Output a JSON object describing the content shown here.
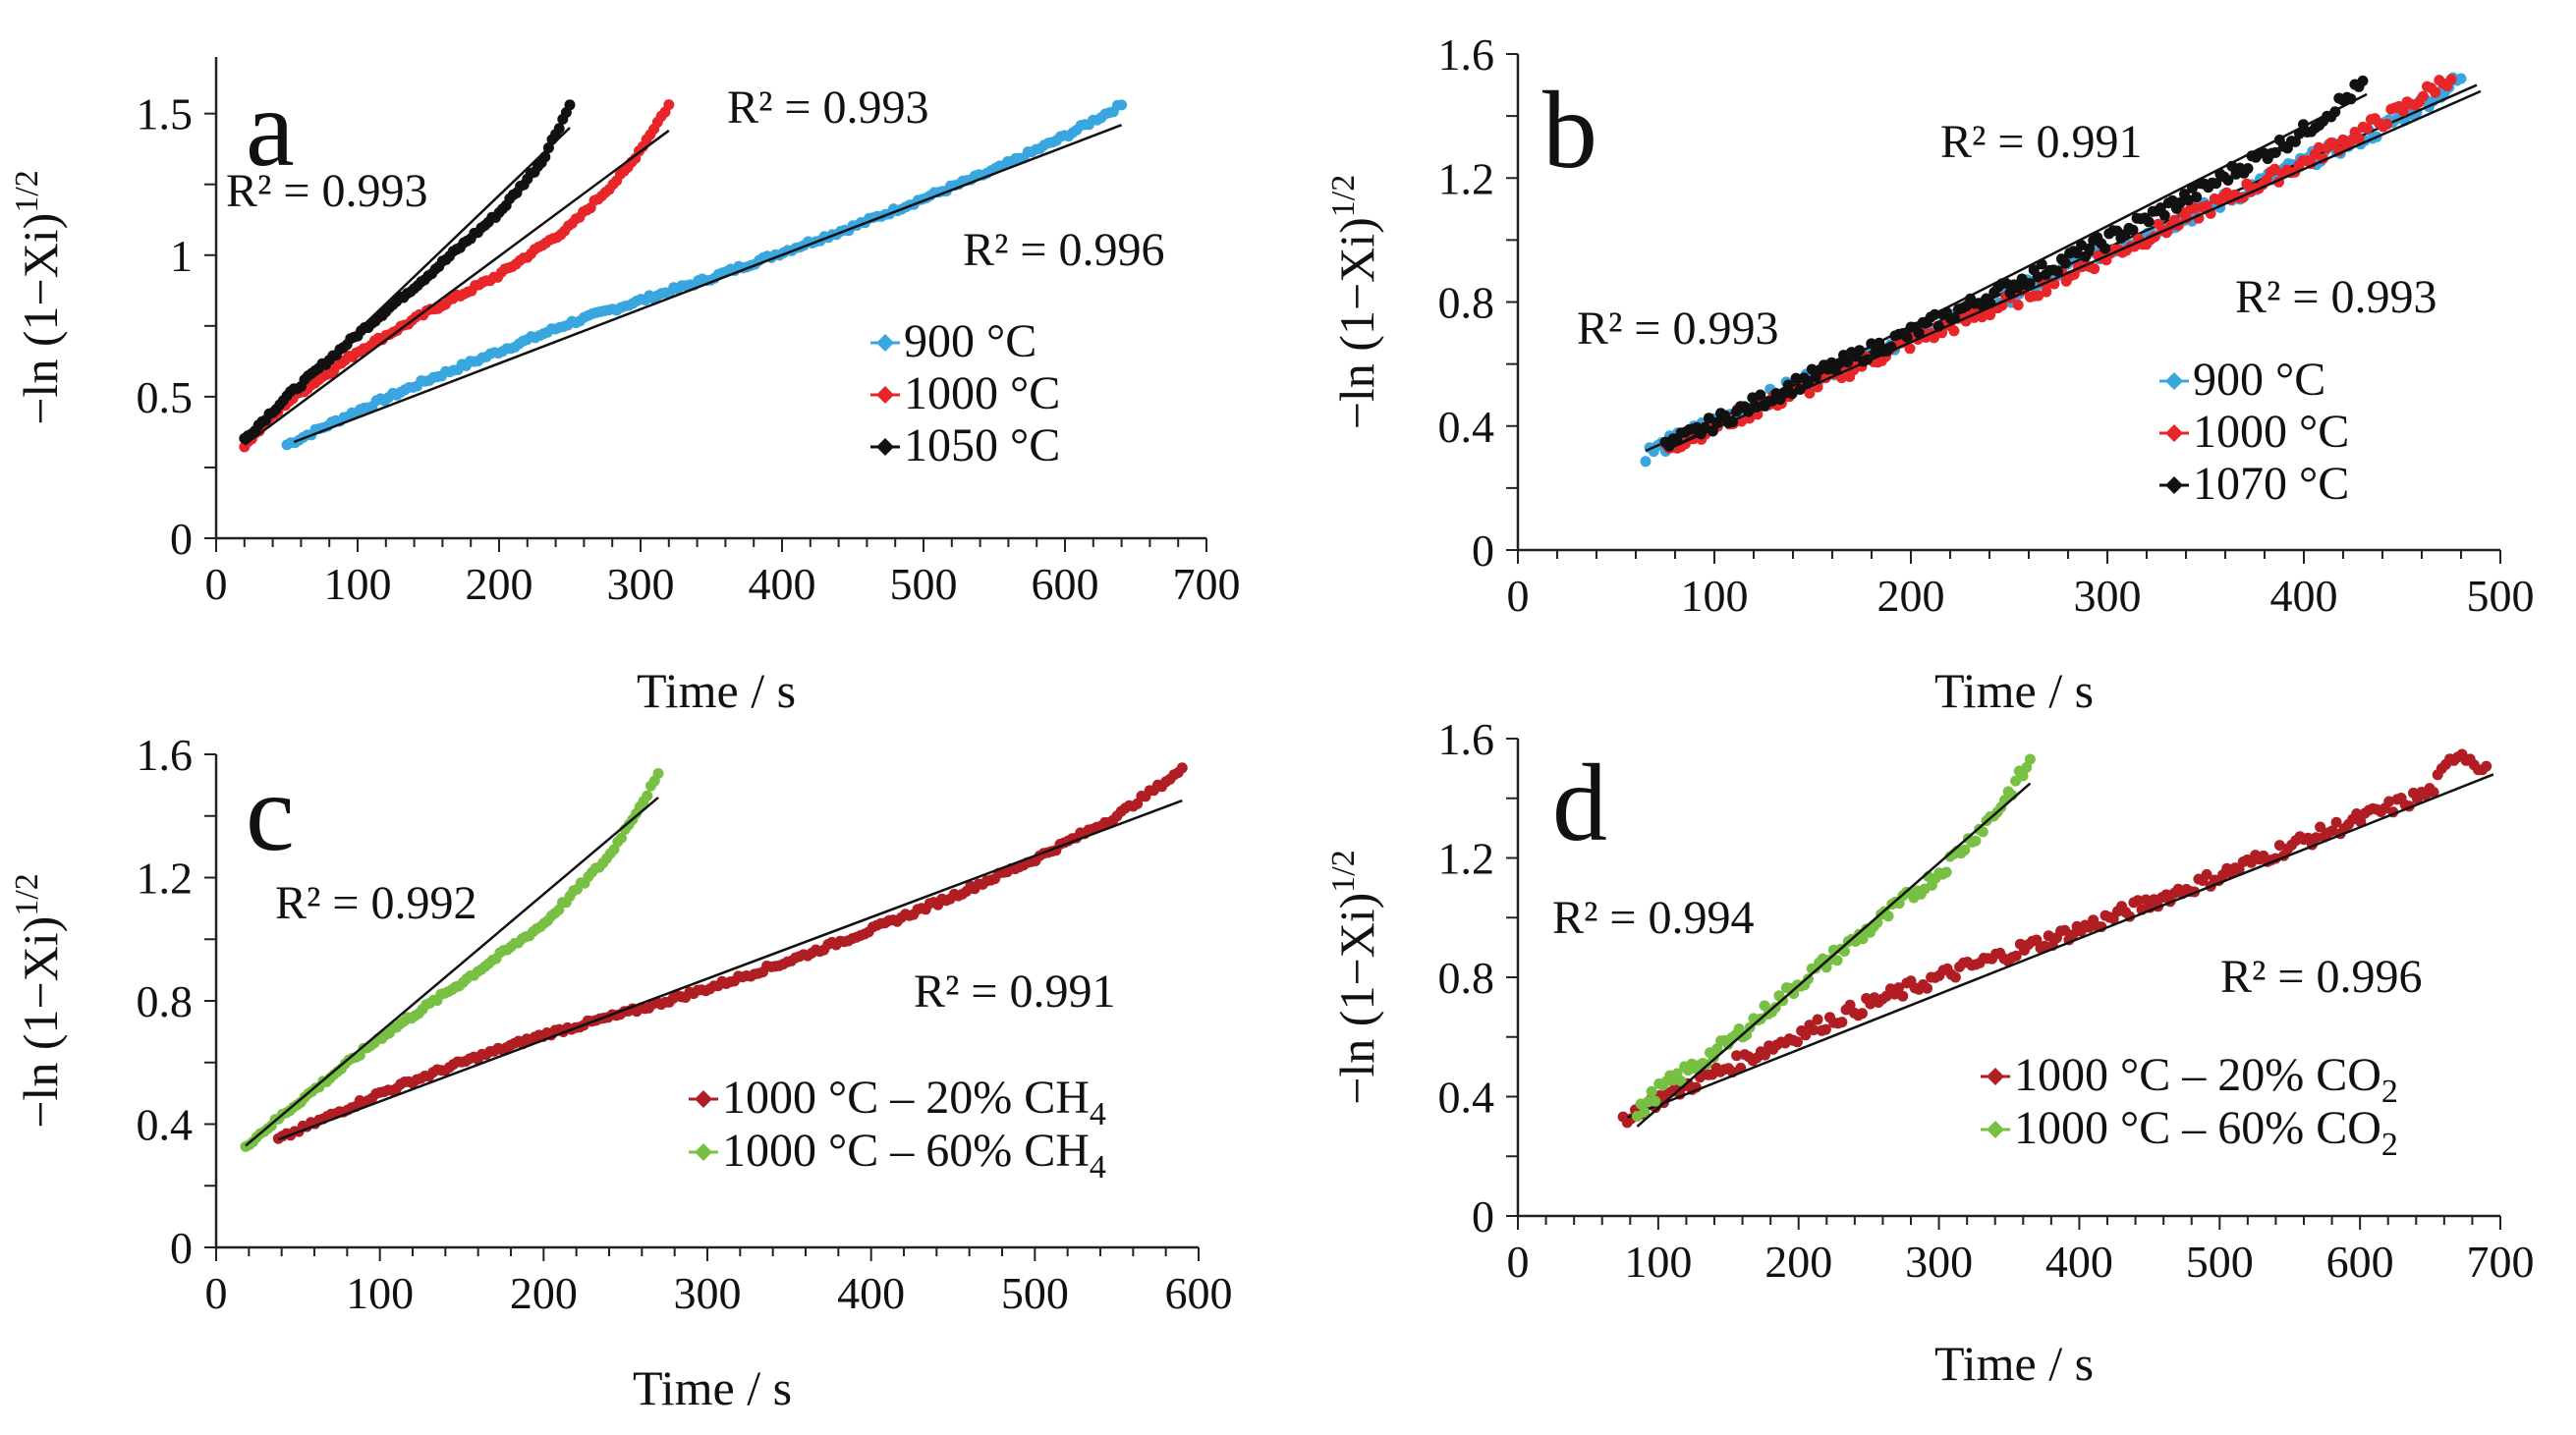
{
  "figure": {
    "y_axis_label": "−ln (1−Xi)",
    "y_axis_superscript": "1/2",
    "x_axis_label": "Time / s"
  },
  "chart_data": [
    {
      "panel": "a",
      "type": "scatter",
      "xlabel": "Time / s",
      "ylabel": "−ln (1−Xi)^1/2",
      "xlim": [
        0,
        700
      ],
      "ylim": [
        0,
        1.7
      ],
      "xticks": [
        0,
        100,
        200,
        300,
        400,
        500,
        600,
        700
      ],
      "xtick_labels": [
        "0",
        "100",
        "200",
        "300",
        "400",
        "500",
        "600",
        "700"
      ],
      "yticks": [
        0,
        0.5,
        1,
        1.5
      ],
      "ytick_labels": [
        "0",
        "0.5",
        "1",
        "1.5"
      ],
      "series": [
        {
          "name": "900 °C",
          "color": "#3aa6e0",
          "legend_label": "900 °C",
          "points": [
            [
              50,
              0.33
            ],
            [
              100,
              0.45
            ],
            [
              150,
              0.56
            ],
            [
              200,
              0.66
            ],
            [
              250,
              0.76
            ],
            [
              300,
              0.84
            ],
            [
              350,
              0.92
            ],
            [
              400,
              1.01
            ],
            [
              450,
              1.1
            ],
            [
              500,
              1.2
            ],
            [
              550,
              1.3
            ],
            [
              600,
              1.42
            ],
            [
              640,
              1.53
            ]
          ],
          "fit": [
            [
              55,
              0.34
            ],
            [
              640,
              1.46
            ]
          ],
          "r2": "R² = 0.996"
        },
        {
          "name": "1000 °C",
          "color": "#e8262a",
          "legend_label": "1000 °C",
          "points": [
            [
              20,
              0.33
            ],
            [
              50,
              0.48
            ],
            [
              100,
              0.66
            ],
            [
              150,
              0.8
            ],
            [
              200,
              0.93
            ],
            [
              250,
              1.1
            ],
            [
              290,
              1.3
            ],
            [
              320,
              1.53
            ]
          ],
          "fit": [
            [
              20,
              0.33
            ],
            [
              320,
              1.44
            ]
          ],
          "r2": "R² = 0.993"
        },
        {
          "name": "1050 °C",
          "color": "#111111",
          "legend_label": "1050 °C",
          "points": [
            [
              20,
              0.35
            ],
            [
              50,
              0.5
            ],
            [
              100,
              0.72
            ],
            [
              150,
              0.93
            ],
            [
              200,
              1.15
            ],
            [
              230,
              1.33
            ],
            [
              250,
              1.53
            ]
          ],
          "fit": [
            [
              20,
              0.35
            ],
            [
              250,
              1.45
            ]
          ],
          "r2": "R² = 0.993"
        }
      ]
    },
    {
      "panel": "b",
      "type": "scatter",
      "xlabel": "Time / s",
      "ylabel": "−ln (1−Xi)^1/2",
      "xlim": [
        0,
        500
      ],
      "ylim": [
        0,
        1.6
      ],
      "xticks": [
        0,
        100,
        200,
        300,
        400,
        500
      ],
      "xtick_labels": [
        "0",
        "100",
        "200",
        "300",
        "400",
        "500"
      ],
      "yticks": [
        0,
        0.4,
        0.8,
        1.2,
        1.6
      ],
      "ytick_labels": [
        "0",
        "0.4",
        "0.8",
        "1.2",
        "1.6"
      ],
      "series": [
        {
          "name": "900 °C",
          "color": "#3aa6e0",
          "legend_label": "900 °C",
          "points": [
            [
              65,
              0.31
            ],
            [
              100,
              0.41
            ],
            [
              150,
              0.56
            ],
            [
              200,
              0.69
            ],
            [
              250,
              0.82
            ],
            [
              300,
              0.97
            ],
            [
              350,
              1.1
            ],
            [
              400,
              1.25
            ],
            [
              440,
              1.36
            ],
            [
              480,
              1.52
            ]
          ],
          "fit": [
            [
              65,
              0.32
            ],
            [
              488,
              1.5
            ]
          ],
          "r2": "R² = 0.993"
        },
        {
          "name": "1000 °C",
          "color": "#e8262a",
          "legend_label": "1000 °C",
          "points": [
            [
              75,
              0.33
            ],
            [
              100,
              0.4
            ],
            [
              150,
              0.53
            ],
            [
              200,
              0.67
            ],
            [
              250,
              0.8
            ],
            [
              300,
              0.95
            ],
            [
              350,
              1.1
            ],
            [
              400,
              1.25
            ],
            [
              450,
              1.42
            ],
            [
              475,
              1.53
            ]
          ],
          "fit": [
            [
              78,
              0.33
            ],
            [
              490,
              1.48
            ]
          ],
          "r2": "R² = 0.993"
        },
        {
          "name": "1070 °C",
          "color": "#111111",
          "legend_label": "1070 °C",
          "points": [
            [
              75,
              0.33
            ],
            [
              100,
              0.41
            ],
            [
              150,
              0.56
            ],
            [
              200,
              0.7
            ],
            [
              250,
              0.85
            ],
            [
              300,
              1.0
            ],
            [
              350,
              1.17
            ],
            [
              400,
              1.35
            ],
            [
              430,
              1.5
            ]
          ],
          "fit": [
            [
              78,
              0.33
            ],
            [
              432,
              1.47
            ]
          ],
          "r2": "R² = 0.991"
        }
      ]
    },
    {
      "panel": "c",
      "type": "scatter",
      "xlabel": "Time / s",
      "ylabel": "−ln (1−Xi)^1/2",
      "xlim": [
        0,
        600
      ],
      "ylim": [
        0,
        1.6
      ],
      "xticks": [
        0,
        100,
        200,
        300,
        400,
        500,
        600
      ],
      "xtick_labels": [
        "0",
        "100",
        "200",
        "300",
        "400",
        "500",
        "600"
      ],
      "yticks": [
        0,
        0.4,
        0.8,
        1.2,
        1.6
      ],
      "ytick_labels": [
        "0",
        "0.4",
        "0.8",
        "1.2",
        "1.6"
      ],
      "series": [
        {
          "name": "1000 °C – 20% CH4",
          "color": "#b01e24",
          "legend_label": "1000 °C – 20% CH",
          "legend_sub": "4",
          "points": [
            [
              38,
              0.35
            ],
            [
              100,
              0.5
            ],
            [
              150,
              0.6
            ],
            [
              200,
              0.69
            ],
            [
              250,
              0.76
            ],
            [
              300,
              0.84
            ],
            [
              350,
              0.93
            ],
            [
              400,
              1.03
            ],
            [
              450,
              1.14
            ],
            [
              500,
              1.26
            ],
            [
              550,
              1.4
            ],
            [
              590,
              1.55
            ]
          ],
          "fit": [
            [
              38,
              0.35
            ],
            [
              590,
              1.45
            ]
          ],
          "r2": "R² = 0.991"
        },
        {
          "name": "1000 °C – 60% CH4",
          "color": "#78c043",
          "legend_label": "1000 °C – 60% CH",
          "legend_sub": "4",
          "points": [
            [
              18,
              0.33
            ],
            [
              50,
              0.47
            ],
            [
              100,
              0.68
            ],
            [
              150,
              0.86
            ],
            [
              200,
              1.05
            ],
            [
              240,
              1.27
            ],
            [
              270,
              1.53
            ]
          ],
          "fit": [
            [
              18,
              0.33
            ],
            [
              270,
              1.46
            ]
          ],
          "r2": "R² = 0.992"
        }
      ]
    },
    {
      "panel": "d",
      "type": "scatter",
      "xlabel": "Time / s",
      "ylabel": "−ln (1−Xi)^1/2",
      "xlim": [
        0,
        700
      ],
      "ylim": [
        0,
        1.6
      ],
      "xticks": [
        0,
        100,
        200,
        300,
        400,
        500,
        600,
        700
      ],
      "xtick_labels": [
        "0",
        "100",
        "200",
        "300",
        "400",
        "500",
        "600",
        "700"
      ],
      "yticks": [
        0,
        0.4,
        0.8,
        1.2,
        1.6
      ],
      "ytick_labels": [
        "0",
        "0.4",
        "0.8",
        "1.2",
        "1.6"
      ],
      "series": [
        {
          "name": "1000 °C – 20% CO2",
          "color": "#b01e24",
          "legend_label": "1000 °C – 20% CO",
          "legend_sub": "2",
          "points": [
            [
              75,
              0.33
            ],
            [
              100,
              0.39
            ],
            [
              150,
              0.5
            ],
            [
              200,
              0.61
            ],
            [
              250,
              0.71
            ],
            [
              300,
              0.8
            ],
            [
              350,
              0.88
            ],
            [
              400,
              0.96
            ],
            [
              450,
              1.05
            ],
            [
              500,
              1.14
            ],
            [
              550,
              1.24
            ],
            [
              600,
              1.33
            ],
            [
              650,
              1.42
            ],
            [
              670,
              1.56
            ],
            [
              690,
              1.5
            ]
          ],
          "fit": [
            [
              78,
              0.33
            ],
            [
              695,
              1.48
            ]
          ],
          "r2": "R² = 0.996"
        },
        {
          "name": "1000 °C – 60% CO2",
          "color": "#78c043",
          "legend_label": "1000 °C – 60% CO",
          "legend_sub": "2",
          "points": [
            [
              85,
              0.34
            ],
            [
              100,
              0.42
            ],
            [
              150,
              0.58
            ],
            [
              200,
              0.78
            ],
            [
              250,
              0.96
            ],
            [
              300,
              1.15
            ],
            [
              340,
              1.35
            ],
            [
              365,
              1.52
            ]
          ],
          "fit": [
            [
              85,
              0.3
            ],
            [
              365,
              1.45
            ]
          ],
          "r2": "R² = 0.994"
        }
      ]
    }
  ]
}
